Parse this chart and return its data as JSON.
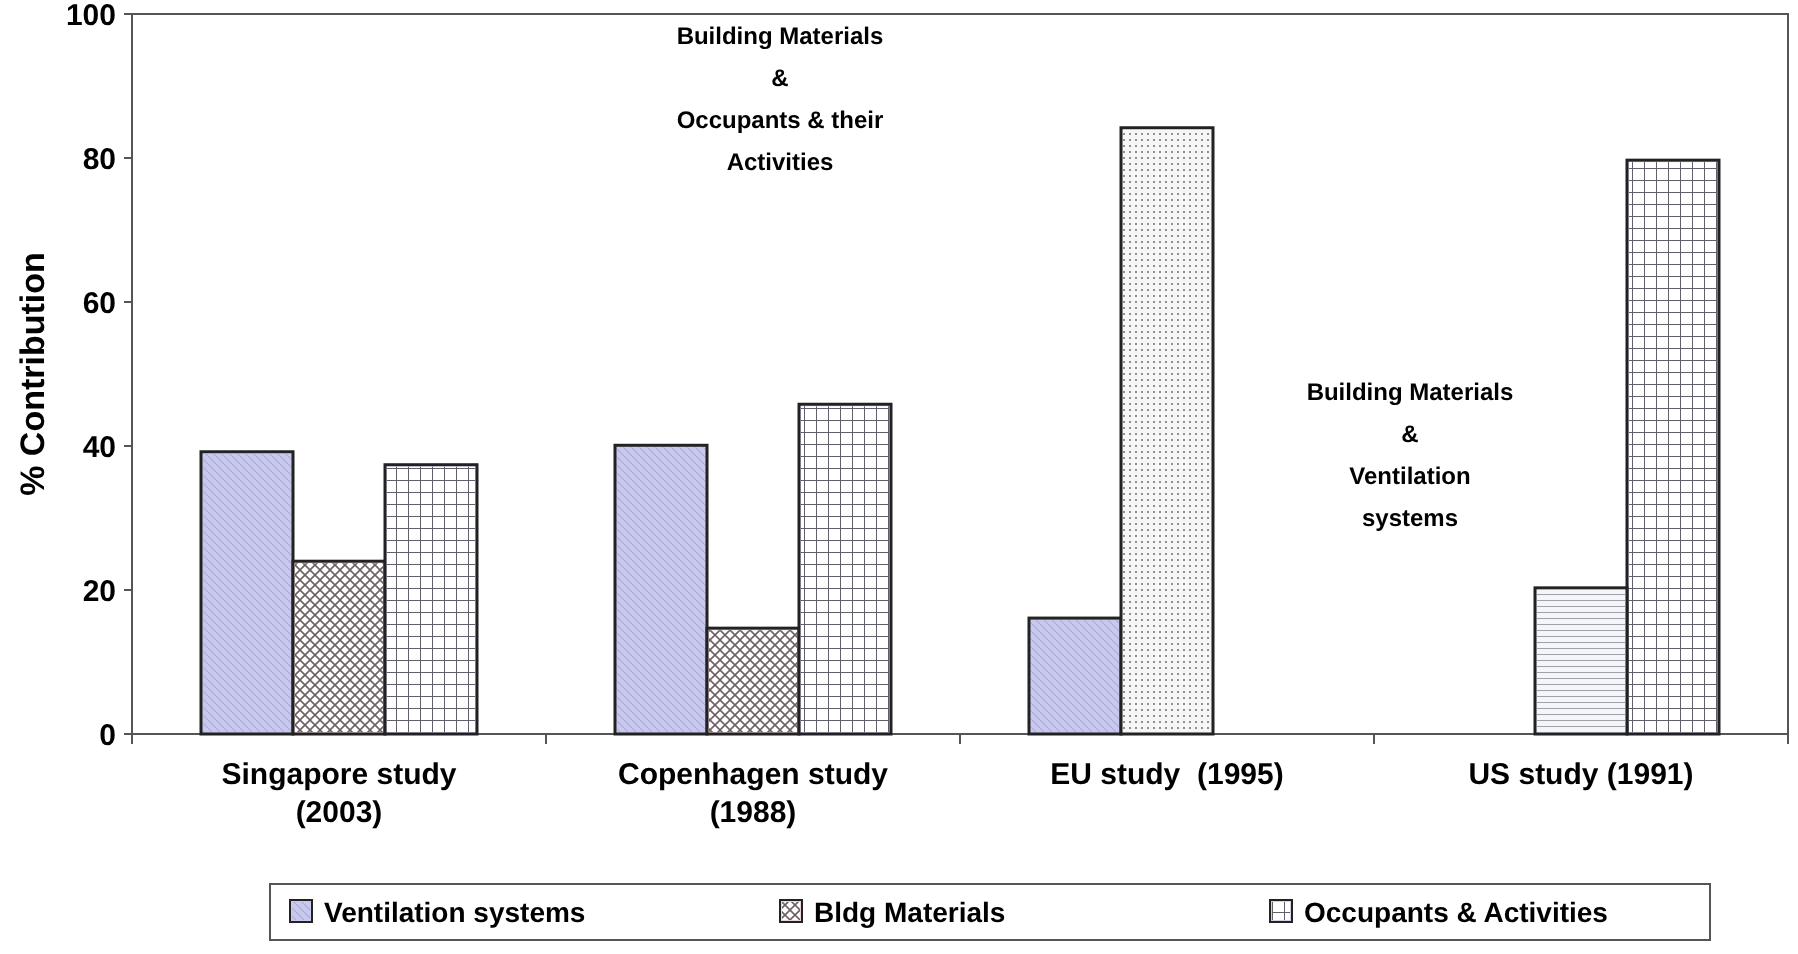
{
  "chart_data": {
    "type": "bar",
    "ylabel": "% Contribution",
    "categories": [
      "Singapore study\n(2003)",
      "Copenhagen study\n(1988)",
      "EU study  (1995)",
      "US study (1991)"
    ],
    "series": [
      {
        "name": "Ventilation systems",
        "color": "#c8c8f0",
        "values": [
          39.2,
          40.1,
          16.1,
          null
        ]
      },
      {
        "name": "Bldg Materials",
        "color": "#ecd4dc",
        "values": [
          24,
          14.7,
          null,
          null
        ]
      },
      {
        "name": "Occupants & Activities",
        "color": "#d0d0ec",
        "values": [
          37.4,
          45.8,
          null,
          79.7
        ]
      },
      {
        "color": "#f0f0f0",
        "values": [
          null,
          null,
          84.2,
          null
        ]
      },
      {
        "color": "#e4e4f4",
        "values": [
          null,
          null,
          null,
          20.3
        ]
      }
    ],
    "ylim": [
      0,
      100
    ],
    "yticks": [
      0,
      20,
      40,
      60,
      80,
      100
    ],
    "grid": false,
    "legend": "bottom",
    "annotations": [
      "Building Materials\n&\nOccupants & their\nActivities",
      "Building Materials\n&\nVentilation\nsystems"
    ]
  }
}
